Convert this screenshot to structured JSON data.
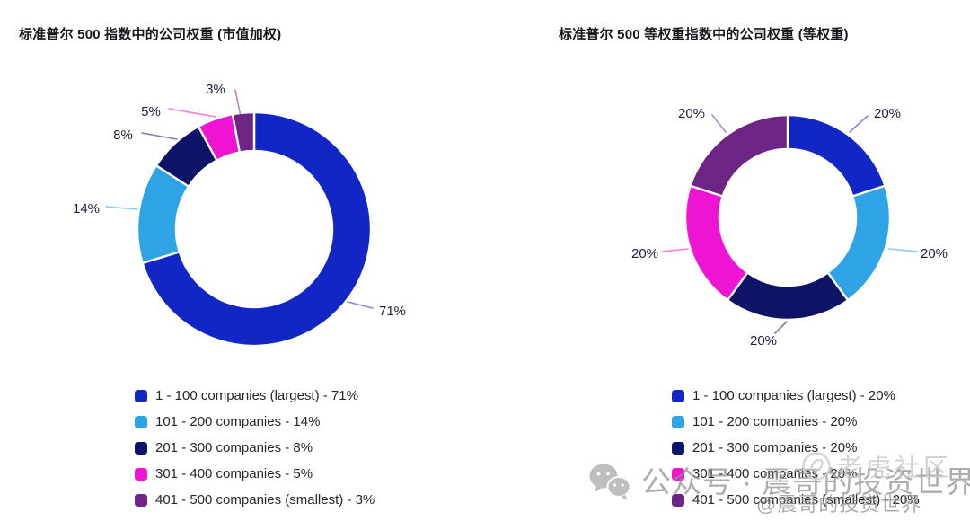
{
  "chart_data": [
    {
      "type": "pie",
      "variant": "donut",
      "title": "标准普尔 500 指数中的公司权重 (市值加权)",
      "categories": [
        "1 - 100 companies (largest)",
        "101 - 200 companies",
        "201 - 300 companies",
        "301 - 400 companies",
        "401 - 500 companies (smallest)"
      ],
      "values": [
        71,
        14,
        8,
        5,
        3
      ],
      "value_labels": [
        "71%",
        "14%",
        "8%",
        "5%",
        "3%"
      ],
      "colors": [
        "#1226c5",
        "#2ea3e6",
        "#0d1467",
        "#ef13d4",
        "#6d2585"
      ],
      "start_angle": "top",
      "direction": "clockwise",
      "legend_position": "bottom"
    },
    {
      "type": "pie",
      "variant": "donut",
      "title": "标准普尔 500 等权重指数中的公司权重 (等权重)",
      "categories": [
        "1 - 100 companies (largest)",
        "101 - 200 companies",
        "201 - 300 companies",
        "301 - 400 companies",
        "401 - 500 companies (smallest)"
      ],
      "values": [
        20,
        20,
        20,
        20,
        20
      ],
      "value_labels": [
        "20%",
        "20%",
        "20%",
        "20%",
        "20%"
      ],
      "colors": [
        "#1226c5",
        "#2ea3e6",
        "#0d1467",
        "#ef13d4",
        "#6d2585"
      ],
      "start_angle": "top",
      "direction": "clockwise",
      "legend_position": "bottom"
    }
  ],
  "legend_separator": " - ",
  "watermarks": {
    "wechat_line": "公众号 · 震哥的投资世界",
    "tiger_community": "老虎社区",
    "handle": "@震哥的投资世界"
  },
  "style": {
    "percent_label_color": "#1d1d3d",
    "segment_gap_color": "#ffffff"
  }
}
